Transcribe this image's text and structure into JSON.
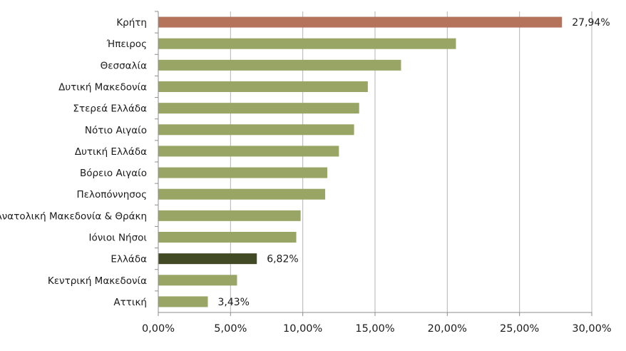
{
  "chart_data": {
    "type": "bar",
    "orientation": "horizontal",
    "categories": [
      "Κρήτη",
      "Ήπειρος",
      "Θεσσαλία",
      "Δυτική Μακεδονία",
      "Στερεά Ελλάδα",
      "Νότιο Αιγαίο",
      "Δυτική Ελλάδα",
      "Βόρειο Αιγαίο",
      "Πελοπόννησος",
      "Ανατολική Μακεδονία & Θράκη",
      "Ιόνιοι Νήσοι",
      "Ελλάδα",
      "Κεντρική Μακεδονία",
      "Αττική"
    ],
    "values": [
      27.94,
      20.6,
      16.8,
      14.5,
      13.9,
      13.55,
      12.5,
      11.7,
      11.55,
      9.85,
      9.55,
      6.82,
      5.45,
      3.43
    ],
    "colors": [
      "#b5735b",
      "#98a565",
      "#98a565",
      "#98a565",
      "#98a565",
      "#98a565",
      "#98a565",
      "#98a565",
      "#98a565",
      "#98a565",
      "#98a565",
      "#414a25",
      "#98a565",
      "#98a565"
    ],
    "data_labels": [
      {
        "index": 0,
        "text": "27,94%"
      },
      {
        "index": 11,
        "text": "6,82%"
      },
      {
        "index": 13,
        "text": "3,43%"
      }
    ],
    "xlim": [
      0,
      30
    ],
    "x_ticks": [
      0,
      5,
      10,
      15,
      20,
      25,
      30
    ],
    "x_tick_labels": [
      "0,00%",
      "5,00%",
      "10,00%",
      "15,00%",
      "20,00%",
      "25,00%",
      "30,00%"
    ],
    "grid": true,
    "title": "",
    "xlabel": "",
    "ylabel": ""
  }
}
